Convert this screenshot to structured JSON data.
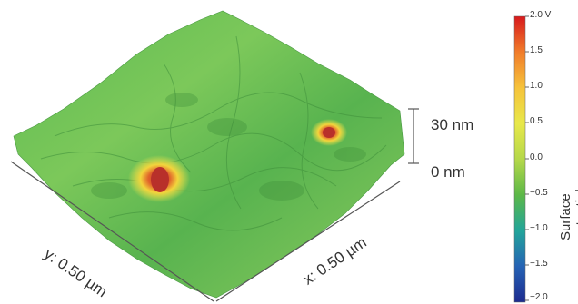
{
  "surface_plot": {
    "z_scale_top": "30 nm",
    "z_scale_bottom": "0 nm",
    "x_axis_label": "x: 0.50 µm",
    "y_axis_label": "y: 0.50 µm"
  },
  "colorbar": {
    "title": "Surface potential [V]",
    "ticks": [
      "2.0 V",
      "1.5",
      "1.0",
      "0.5",
      "0.0",
      "−0.5",
      "−1.0",
      "−1.5",
      "−2.0"
    ],
    "colors": [
      "#d7191c",
      "#f17c2a",
      "#f6c33b",
      "#e8e84a",
      "#b5d84a",
      "#5cb848",
      "#22a59a",
      "#2563b5",
      "#1d2b8f"
    ]
  }
}
